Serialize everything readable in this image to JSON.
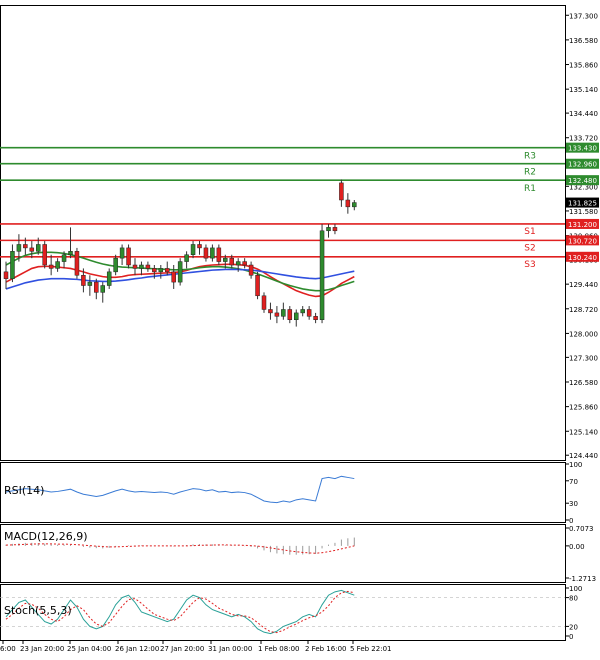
{
  "chart_data": {
    "type": "candlestick",
    "symbol_panel": {
      "price_ticks": [
        137.3,
        136.58,
        135.86,
        135.14,
        134.44,
        133.72,
        133.0,
        132.3,
        131.58,
        130.86,
        130.16,
        129.44,
        128.72,
        128.0,
        127.3,
        126.58,
        125.86,
        125.14,
        124.44
      ],
      "price_tick_labels": [
        "137.300",
        "136.580",
        "135.860",
        "135.140",
        "134.440",
        "133.720",
        "133.000",
        "132.300",
        "131.580",
        "130.860",
        "130.160",
        "129.440",
        "128.720",
        "128.000",
        "127.300",
        "126.580",
        "125.860",
        "125.140",
        "124.440"
      ],
      "ylim": [
        124.3,
        137.6
      ],
      "current_price": {
        "value": 131.825,
        "label": "131.825"
      },
      "levels": [
        {
          "name": "R3",
          "value": 133.43,
          "label": "133.430",
          "color": "#2e8b2e"
        },
        {
          "name": "R2",
          "value": 132.96,
          "label": "132.960",
          "color": "#2e8b2e"
        },
        {
          "name": "R1",
          "value": 132.48,
          "label": "132.480",
          "color": "#2e8b2e"
        },
        {
          "name": "S1",
          "value": 131.2,
          "label": "131.200",
          "color": "#e02020"
        },
        {
          "name": "S2",
          "value": 130.72,
          "label": "130.720",
          "color": "#e02020"
        },
        {
          "name": "S3",
          "value": 130.24,
          "label": "130.240",
          "color": "#e02020"
        }
      ],
      "candles": [
        [
          129.8,
          130.1,
          129.3,
          129.6
        ],
        [
          129.6,
          130.6,
          129.5,
          130.4
        ],
        [
          130.4,
          130.9,
          130.1,
          130.6
        ],
        [
          130.6,
          130.8,
          130.3,
          130.5
        ],
        [
          130.5,
          130.7,
          130.2,
          130.4
        ],
        [
          130.4,
          130.8,
          130.3,
          130.6
        ],
        [
          130.6,
          130.7,
          129.9,
          130.0
        ],
        [
          130.0,
          130.3,
          129.7,
          129.9
        ],
        [
          129.9,
          130.2,
          129.8,
          130.1
        ],
        [
          130.1,
          130.4,
          129.9,
          130.3
        ],
        [
          130.3,
          131.1,
          130.2,
          130.4
        ],
        [
          130.4,
          130.5,
          129.6,
          129.7
        ],
        [
          129.7,
          129.9,
          129.2,
          129.4
        ],
        [
          129.4,
          129.7,
          129.1,
          129.5
        ],
        [
          129.5,
          129.6,
          129.0,
          129.2
        ],
        [
          129.2,
          129.5,
          128.9,
          129.4
        ],
        [
          129.4,
          129.9,
          129.3,
          129.8
        ],
        [
          129.8,
          130.3,
          129.7,
          130.2
        ],
        [
          130.2,
          130.6,
          130.0,
          130.5
        ],
        [
          130.5,
          130.6,
          129.9,
          130.0
        ],
        [
          130.0,
          130.2,
          129.7,
          129.9
        ],
        [
          129.9,
          130.1,
          129.7,
          130.0
        ],
        [
          130.0,
          130.1,
          129.8,
          129.9
        ],
        [
          129.9,
          130.0,
          129.6,
          129.8
        ],
        [
          129.8,
          130.0,
          129.6,
          129.9
        ],
        [
          129.9,
          130.1,
          129.7,
          129.8
        ],
        [
          129.8,
          130.0,
          129.3,
          129.5
        ],
        [
          129.5,
          130.2,
          129.4,
          130.1
        ],
        [
          130.1,
          130.4,
          129.9,
          130.3
        ],
        [
          130.3,
          130.7,
          130.2,
          130.6
        ],
        [
          130.6,
          130.7,
          130.3,
          130.5
        ],
        [
          130.5,
          130.6,
          130.1,
          130.2
        ],
        [
          130.2,
          130.6,
          130.1,
          130.5
        ],
        [
          130.5,
          130.6,
          130.0,
          130.1
        ],
        [
          130.1,
          130.3,
          129.9,
          130.2
        ],
        [
          130.2,
          130.3,
          129.9,
          130.0
        ],
        [
          130.0,
          130.2,
          129.8,
          130.1
        ],
        [
          130.1,
          130.2,
          129.9,
          130.0
        ],
        [
          130.0,
          130.1,
          129.6,
          129.7
        ],
        [
          129.7,
          129.8,
          129.0,
          129.1
        ],
        [
          129.1,
          129.2,
          128.6,
          128.7
        ],
        [
          128.7,
          128.9,
          128.4,
          128.6
        ],
        [
          128.6,
          128.8,
          128.3,
          128.5
        ],
        [
          128.5,
          128.9,
          128.4,
          128.7
        ],
        [
          128.7,
          128.8,
          128.3,
          128.4
        ],
        [
          128.4,
          128.7,
          128.2,
          128.6
        ],
        [
          128.6,
          128.8,
          128.5,
          128.7
        ],
        [
          128.7,
          128.8,
          128.4,
          128.5
        ],
        [
          128.5,
          128.6,
          128.3,
          128.4
        ],
        [
          128.4,
          131.2,
          128.3,
          131.0
        ],
        [
          131.0,
          131.2,
          130.8,
          131.1
        ],
        [
          131.1,
          131.2,
          130.9,
          131.0
        ],
        [
          132.4,
          132.5,
          131.7,
          131.9
        ],
        [
          131.9,
          132.1,
          131.5,
          131.7
        ],
        [
          131.7,
          131.9,
          131.6,
          131.825
        ]
      ],
      "candle_colors": {
        "up": "#2e8b2e",
        "down": "#e02020",
        "ohlc_order": "open-high-low-close"
      },
      "moving_averages": [
        {
          "color": "#e02020",
          "values": [
            129.5,
            129.6,
            129.7,
            129.8,
            129.9,
            129.95,
            129.96,
            129.96,
            129.94,
            129.92,
            129.9,
            129.85,
            129.8,
            129.74,
            129.7,
            129.66,
            129.64,
            129.64,
            129.66,
            129.7,
            129.72,
            129.73,
            129.74,
            129.75,
            129.76,
            129.77,
            129.78,
            129.8,
            129.84,
            129.9,
            129.95,
            129.98,
            130.0,
            130.01,
            130.02,
            130.02,
            130.01,
            129.99,
            129.95,
            129.88,
            129.78,
            129.66,
            129.55,
            129.45,
            129.35,
            129.25,
            129.18,
            129.12,
            129.08,
            129.1,
            129.2,
            129.32,
            129.46,
            129.56,
            129.66
          ]
        },
        {
          "color": "#2e8b2e",
          "values": [
            130.0,
            130.1,
            130.2,
            130.28,
            130.33,
            130.36,
            130.37,
            130.37,
            130.36,
            130.34,
            130.3,
            130.26,
            130.2,
            130.14,
            130.08,
            130.03,
            129.99,
            129.96,
            129.94,
            129.93,
            129.92,
            129.91,
            129.9,
            129.89,
            129.88,
            129.87,
            129.86,
            129.86,
            129.87,
            129.89,
            129.92,
            129.94,
            129.95,
            129.95,
            129.94,
            129.92,
            129.89,
            129.85,
            129.8,
            129.74,
            129.67,
            129.6,
            129.53,
            129.46,
            129.4,
            129.35,
            129.3,
            129.27,
            129.25,
            129.25,
            129.28,
            129.33,
            129.4,
            129.46,
            129.52
          ]
        },
        {
          "color": "#3050e0",
          "values": [
            129.3,
            129.36,
            129.42,
            129.48,
            129.52,
            129.56,
            129.58,
            129.6,
            129.6,
            129.6,
            129.59,
            129.58,
            129.56,
            129.54,
            129.53,
            129.52,
            129.52,
            129.53,
            129.55,
            129.57,
            129.6,
            129.62,
            129.65,
            129.67,
            129.69,
            129.71,
            129.73,
            129.75,
            129.77,
            129.79,
            129.81,
            129.83,
            129.85,
            129.86,
            129.87,
            129.87,
            129.87,
            129.86,
            129.85,
            129.83,
            129.8,
            129.77,
            129.74,
            129.71,
            129.68,
            129.65,
            129.63,
            129.61,
            129.6,
            129.62,
            129.66,
            129.7,
            129.74,
            129.78,
            129.82
          ]
        }
      ]
    },
    "time_labels": [
      "6:00",
      "23 Jan 20:00",
      "25 Jan 04:00",
      "26 Jan 12:00",
      "27 Jan 20:00",
      "31 Jan 00:00",
      "1 Feb 08:00",
      "2 Feb 16:00",
      "5 Feb 22:01"
    ],
    "rsi_panel": {
      "label": "RSI(14)",
      "ticks": [
        100,
        70,
        30,
        0
      ],
      "tick_labels": [
        "100",
        "70",
        "30",
        "0"
      ],
      "ylim": [
        0,
        100
      ],
      "color": "#3a7bd5",
      "values": [
        50,
        52,
        54,
        56,
        55,
        54,
        52,
        50,
        51,
        53,
        55,
        50,
        46,
        44,
        42,
        44,
        48,
        52,
        55,
        52,
        50,
        51,
        50,
        49,
        50,
        49,
        46,
        50,
        53,
        56,
        55,
        52,
        54,
        50,
        51,
        49,
        50,
        49,
        46,
        40,
        34,
        32,
        31,
        34,
        32,
        36,
        38,
        36,
        34,
        74,
        76,
        74,
        78,
        76,
        74
      ]
    },
    "macd_panel": {
      "label": "MACD(12,26,9)",
      "ticks": [
        0.7073,
        0.0,
        -1.2713
      ],
      "tick_labels": [
        "0.7073",
        "0.00",
        "-1.2713"
      ],
      "ylim": [
        -1.2713,
        0.7073
      ],
      "histogram_color": "#9a9a9a",
      "signal_color": "#e02020",
      "histogram": [
        0.05,
        0.08,
        0.1,
        0.12,
        0.12,
        0.11,
        0.09,
        0.06,
        0.05,
        0.05,
        0.04,
        0.0,
        -0.04,
        -0.07,
        -0.09,
        -0.1,
        -0.08,
        -0.04,
        0.0,
        0.02,
        0.02,
        0.02,
        0.01,
        0.0,
        0.0,
        -0.01,
        -0.02,
        0.0,
        0.03,
        0.06,
        0.07,
        0.06,
        0.06,
        0.04,
        0.03,
        0.02,
        0.01,
        -0.01,
        -0.04,
        -0.1,
        -0.18,
        -0.25,
        -0.3,
        -0.33,
        -0.35,
        -0.35,
        -0.34,
        -0.33,
        -0.32,
        -0.1,
        0.05,
        0.12,
        0.25,
        0.3,
        0.33
      ],
      "signal": [
        0.03,
        0.04,
        0.05,
        0.06,
        0.07,
        0.08,
        0.08,
        0.08,
        0.07,
        0.07,
        0.06,
        0.05,
        0.03,
        0.01,
        -0.01,
        -0.03,
        -0.04,
        -0.04,
        -0.03,
        -0.02,
        -0.01,
        0.0,
        0.0,
        0.0,
        0.0,
        0.0,
        0.0,
        0.0,
        0.0,
        0.01,
        0.02,
        0.03,
        0.03,
        0.04,
        0.04,
        0.03,
        0.03,
        0.02,
        0.01,
        -0.01,
        -0.04,
        -0.08,
        -0.12,
        -0.16,
        -0.2,
        -0.23,
        -0.26,
        -0.28,
        -0.29,
        -0.27,
        -0.23,
        -0.18,
        -0.12,
        -0.06,
        0.0
      ]
    },
    "stoch_panel": {
      "label": "Stoch(5,5,3)",
      "ticks": [
        100,
        80,
        20,
        0
      ],
      "tick_labels": [
        "100",
        "80",
        "20",
        "0"
      ],
      "ylim": [
        0,
        100
      ],
      "k_color": "#2aa198",
      "d_color": "#e02020",
      "k": [
        40,
        55,
        70,
        75,
        60,
        45,
        30,
        25,
        35,
        55,
        75,
        60,
        35,
        20,
        15,
        20,
        40,
        65,
        80,
        85,
        70,
        50,
        45,
        40,
        35,
        30,
        35,
        55,
        75,
        85,
        80,
        65,
        55,
        50,
        45,
        40,
        45,
        40,
        30,
        15,
        8,
        5,
        10,
        20,
        25,
        30,
        40,
        45,
        40,
        65,
        85,
        92,
        95,
        90,
        85
      ],
      "d": [
        35,
        45,
        58,
        68,
        66,
        58,
        45,
        35,
        30,
        40,
        55,
        63,
        55,
        38,
        25,
        20,
        28,
        45,
        62,
        76,
        78,
        68,
        56,
        45,
        40,
        35,
        32,
        40,
        55,
        70,
        80,
        77,
        68,
        58,
        52,
        45,
        42,
        42,
        38,
        28,
        17,
        9,
        7,
        12,
        19,
        25,
        32,
        38,
        42,
        50,
        63,
        80,
        90,
        93,
        90
      ]
    }
  }
}
